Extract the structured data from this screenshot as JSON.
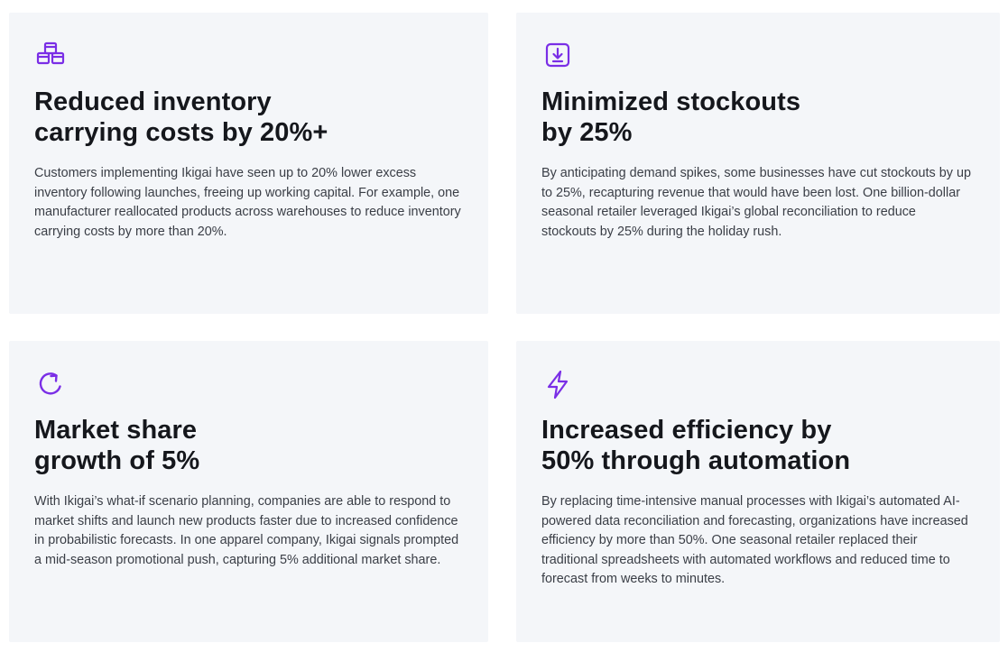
{
  "accent_color": "#7a2ee6",
  "cards": [
    {
      "icon": "cubes-icon",
      "title_line1": "Reduced inventory",
      "title_line2": "carrying costs by 20%+",
      "body": "Customers implementing Ikigai have seen up to 20% lower excess inventory following launches, freeing up working capital. For example, one manufacturer reallocated products across warehouses to reduce inventory carrying costs by more than 20%."
    },
    {
      "icon": "download-tray-icon",
      "title_line1": "Minimized stockouts",
      "title_line2": "by 25%",
      "body": "By anticipating demand spikes, some businesses have cut stockouts by up to 25%, recapturing revenue that would have been lost. One billion-dollar seasonal retailer leveraged Ikigai’s global reconciliation to reduce stockouts by 25% during the holiday rush."
    },
    {
      "icon": "refresh-icon",
      "title_line1": "Market share",
      "title_line2": "growth of 5%",
      "body": "With Ikigai’s what-if scenario planning, companies are able to respond to market shifts and launch new products faster due to increased confidence in probabilistic forecasts. In one apparel company, Ikigai signals prompted a mid-season promotional push, capturing 5% additional market share."
    },
    {
      "icon": "lightning-icon",
      "title_line1": "Increased efficiency by",
      "title_line2": "50% through automation",
      "body": "By replacing time-intensive manual processes with Ikigai’s automated AI-powered data reconciliation and forecasting, organizations have increased efficiency by more than 50%. One seasonal retailer replaced their traditional spreadsheets with automated workflows and reduced time to forecast from weeks to minutes."
    }
  ]
}
